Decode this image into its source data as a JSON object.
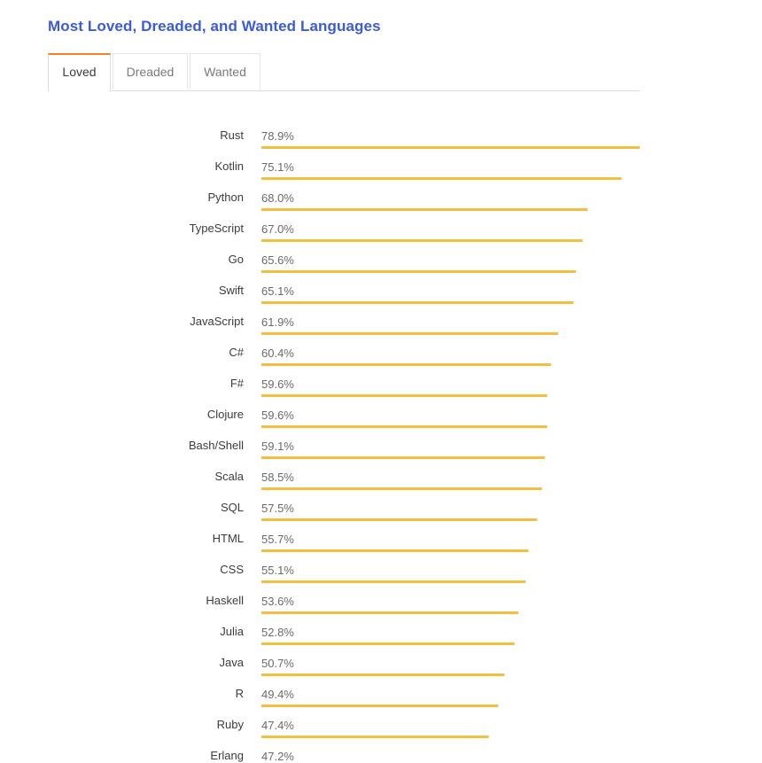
{
  "title": "Most Loved, Dreaded, and Wanted Languages",
  "tabs": [
    {
      "label": "Loved",
      "active": true
    },
    {
      "label": "Dreaded",
      "active": false
    },
    {
      "label": "Wanted",
      "active": false
    }
  ],
  "colors": {
    "title": "#3b5cd6",
    "bar": "#f4be41",
    "active_tab_accent": "#f48024"
  },
  "chart_data": {
    "type": "bar",
    "orientation": "horizontal",
    "categories": [
      "Rust",
      "Kotlin",
      "Python",
      "TypeScript",
      "Go",
      "Swift",
      "JavaScript",
      "C#",
      "F#",
      "Clojure",
      "Bash/Shell",
      "Scala",
      "SQL",
      "HTML",
      "CSS",
      "Haskell",
      "Julia",
      "Java",
      "R",
      "Ruby",
      "Erlang"
    ],
    "values": [
      78.9,
      75.1,
      68.0,
      67.0,
      65.6,
      65.1,
      61.9,
      60.4,
      59.6,
      59.6,
      59.1,
      58.5,
      57.5,
      55.7,
      55.1,
      53.6,
      52.8,
      50.7,
      49.4,
      47.4,
      47.2
    ],
    "value_labels": [
      "78.9%",
      "75.1%",
      "68.0%",
      "67.0%",
      "65.6%",
      "65.1%",
      "61.9%",
      "60.4%",
      "59.6%",
      "59.6%",
      "59.1%",
      "58.5%",
      "57.5%",
      "55.7%",
      "55.1%",
      "53.6%",
      "52.8%",
      "50.7%",
      "49.4%",
      "47.4%",
      "47.2%"
    ],
    "grid": false
  }
}
